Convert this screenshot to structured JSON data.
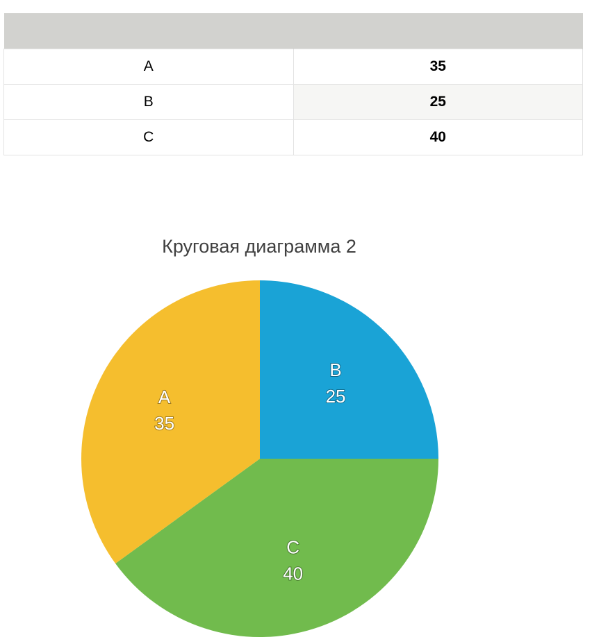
{
  "table": {
    "rows": [
      {
        "category": "A",
        "value": "35"
      },
      {
        "category": "B",
        "value": "25"
      },
      {
        "category": "C",
        "value": "40"
      }
    ]
  },
  "chart_data": {
    "type": "pie",
    "title": "Круговая диаграмма 2",
    "categories": [
      "A",
      "B",
      "C"
    ],
    "values": [
      35,
      25,
      40
    ],
    "colors": [
      "#f5be2e",
      "#1aa3d6",
      "#71bb4d"
    ],
    "data_labels": true,
    "legend": "none"
  }
}
